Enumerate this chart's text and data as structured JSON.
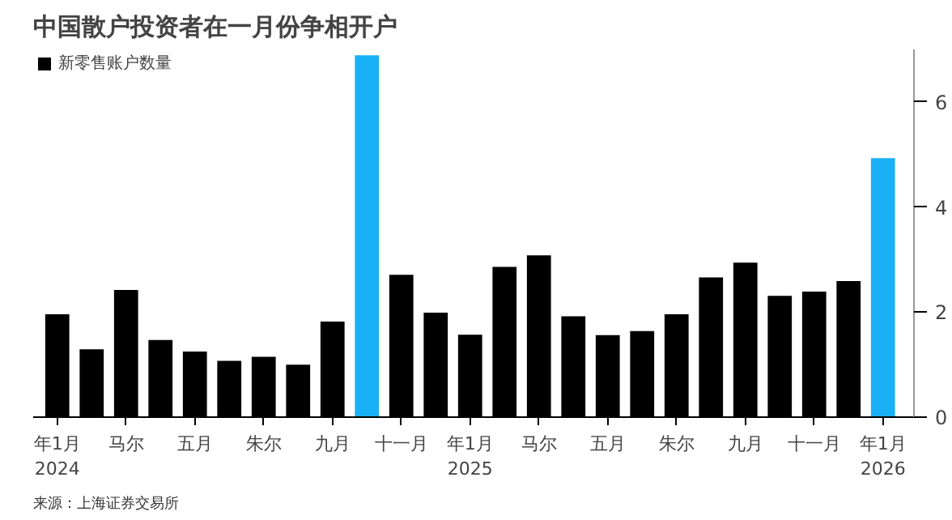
{
  "chart_data": {
    "type": "bar",
    "title": "中国散户投资者在一月份争相开户",
    "categories": [
      "年1月\n2024",
      null,
      "马尔",
      null,
      "五月",
      null,
      "朱尔",
      null,
      "九月",
      null,
      "十一月",
      null,
      "年1月\n2025",
      null,
      "马尔",
      null,
      "五月",
      null,
      "朱尔",
      null,
      "九月",
      null,
      "十一月",
      null,
      "年1月\n2026"
    ],
    "series": [
      {
        "name": "新零售账户数量",
        "color": "#000000",
        "colors": [
          "#000000",
          "#000000",
          "#000000",
          "#000000",
          "#000000",
          "#000000",
          "#000000",
          "#000000",
          "#000000",
          "#1ab0f5",
          "#000000",
          "#000000",
          "#000000",
          "#000000",
          "#000000",
          "#000000",
          "#000000",
          "#000000",
          "#000000",
          "#000000",
          "#000000",
          "#000000",
          "#000000",
          "#000000",
          "#1ab0f5"
        ],
        "values": [
          1.96,
          1.29,
          2.42,
          1.47,
          1.25,
          1.07,
          1.15,
          1.0,
          1.82,
          6.89,
          2.71,
          1.99,
          1.57,
          2.86,
          3.08,
          1.92,
          1.56,
          1.64,
          1.96,
          2.66,
          2.94,
          2.31,
          2.39,
          2.59,
          4.93
        ]
      }
    ],
    "ylim": [
      0,
      7
    ],
    "yticks": [
      0,
      2,
      4,
      6
    ],
    "grid": false,
    "legend": "top left",
    "annotations": [
      "来源：上海证券交易所"
    ]
  }
}
